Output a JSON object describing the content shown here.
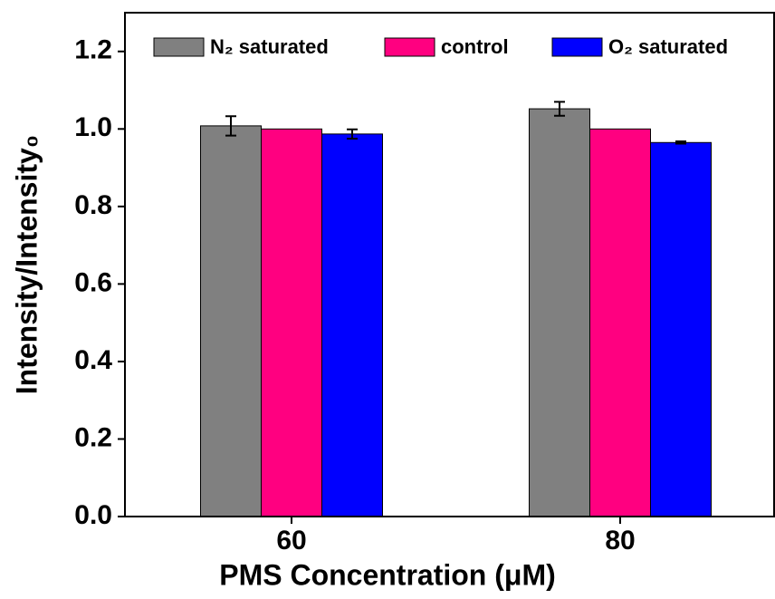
{
  "chart_data": {
    "type": "bar",
    "xlabel": "PMS Concentration (μM)",
    "ylabel": "Intensity/Intensity₀",
    "categories": [
      "60",
      "80"
    ],
    "series": [
      {
        "name": "N₂ saturated",
        "color": "#808080",
        "values": [
          1.008,
          1.052
        ],
        "errors": [
          0.025,
          0.018
        ]
      },
      {
        "name": "control",
        "color": "#ff0080",
        "values": [
          1.0,
          1.0
        ],
        "errors": [
          0,
          0
        ]
      },
      {
        "name": "O₂ saturated",
        "color": "#0000ff",
        "values": [
          0.987,
          0.965
        ],
        "errors": [
          0.012,
          0.003
        ]
      }
    ],
    "ylim": [
      0,
      1.3
    ],
    "yticks": [
      {
        "value": 0,
        "label": "0.0"
      },
      0.2,
      0.4,
      0.6,
      0.8,
      {
        "value": 1,
        "label": "1.0"
      },
      1.2
    ],
    "legend": "top"
  }
}
